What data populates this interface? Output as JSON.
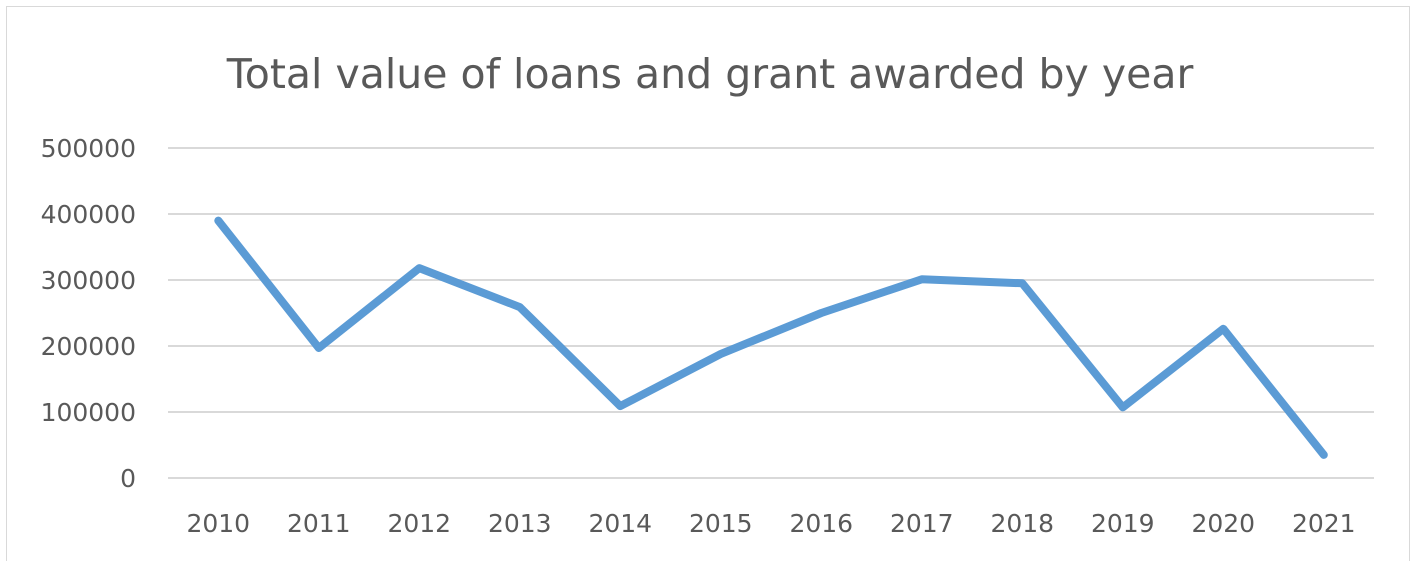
{
  "chart_data": {
    "type": "line",
    "title": "Total value of loans and grant awarded by year",
    "xlabel": "",
    "ylabel": "",
    "categories": [
      "2010",
      "2011",
      "2012",
      "2013",
      "2014",
      "2015",
      "2016",
      "2017",
      "2018",
      "2019",
      "2020",
      "2021"
    ],
    "series": [
      {
        "values": [
          390000,
          197000,
          318000,
          259000,
          109000,
          188000,
          250000,
          301000,
          295000,
          107000,
          226000,
          35000
        ],
        "color": "#5b9bd5"
      }
    ],
    "ylim": [
      0,
      500000
    ],
    "yticks": [
      "0",
      "100000",
      "200000",
      "300000",
      "400000",
      "500000"
    ],
    "grid": true,
    "legend": "none"
  }
}
